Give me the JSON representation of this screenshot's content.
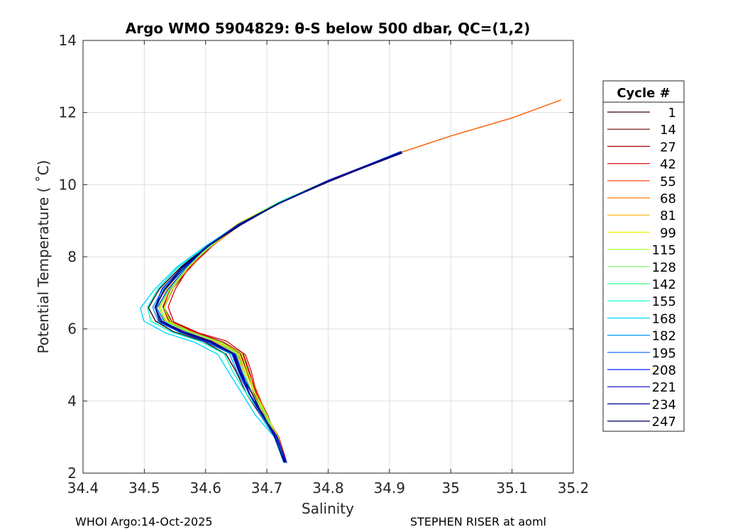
{
  "chart_data": {
    "type": "line",
    "title": "Argo WMO 5904829: θ-S below 500 dbar,  QC=(1,2)",
    "xlabel": "Salinity",
    "ylabel": "Potential Temperature ( ˚C)",
    "xlim": [
      34.4,
      35.2
    ],
    "ylim": [
      2,
      14
    ],
    "xticks": [
      "34.4",
      "34.5",
      "34.6",
      "34.7",
      "34.8",
      "34.9",
      "35",
      "35.1",
      "35.2"
    ],
    "yticks": [
      "2",
      "4",
      "6",
      "8",
      "10",
      "12",
      "14"
    ],
    "grid": true,
    "legend": {
      "title": "Cycle #",
      "placement": "right"
    },
    "series": [
      {
        "name": "1",
        "color": "#3a0000",
        "variant": -0.015
      },
      {
        "name": "14",
        "color": "#6d0000",
        "variant": 0.012
      },
      {
        "name": "27",
        "color": "#a80000",
        "variant": 0.018
      },
      {
        "name": "42",
        "color": "#d81414",
        "variant": 0.022
      },
      {
        "name": "55",
        "color": "#ff3c00",
        "variant": 0.016
      },
      {
        "name": "68",
        "color": "#ff7800",
        "variant": 0.008
      },
      {
        "name": "81",
        "color": "#ffb400",
        "variant": 0.004
      },
      {
        "name": "99",
        "color": "#f0f000",
        "variant": 0.01
      },
      {
        "name": "115",
        "color": "#a8ff2a",
        "variant": 0.014
      },
      {
        "name": "128",
        "color": "#6cff5a",
        "variant": 0.006
      },
      {
        "name": "142",
        "color": "#30ff8c",
        "variant": -0.004
      },
      {
        "name": "155",
        "color": "#00ffc8",
        "variant": -0.02
      },
      {
        "name": "168",
        "color": "#00d6ff",
        "variant": -0.032
      },
      {
        "name": "182",
        "color": "#009cff",
        "variant": -0.01
      },
      {
        "name": "195",
        "color": "#0060ff",
        "variant": 0.002
      },
      {
        "name": "208",
        "color": "#0024ff",
        "variant": -0.006
      },
      {
        "name": "221",
        "color": "#0000d4",
        "variant": -0.002
      },
      {
        "name": "234",
        "color": "#00009a",
        "variant": 0.0
      },
      {
        "name": "247",
        "color": "#000064",
        "variant": -0.004
      }
    ],
    "base_profile": [
      {
        "s": 34.73,
        "t": 2.3
      },
      {
        "s": 34.715,
        "t": 3.0
      },
      {
        "s": 34.695,
        "t": 3.6
      },
      {
        "s": 34.675,
        "t": 4.2
      },
      {
        "s": 34.66,
        "t": 4.8
      },
      {
        "s": 34.645,
        "t": 5.3
      },
      {
        "s": 34.61,
        "t": 5.65
      },
      {
        "s": 34.565,
        "t": 5.9
      },
      {
        "s": 34.53,
        "t": 6.2
      },
      {
        "s": 34.52,
        "t": 6.6
      },
      {
        "s": 34.535,
        "t": 7.1
      },
      {
        "s": 34.565,
        "t": 7.7
      },
      {
        "s": 34.605,
        "t": 8.3
      },
      {
        "s": 34.655,
        "t": 8.9
      },
      {
        "s": 34.72,
        "t": 9.5
      },
      {
        "s": 34.8,
        "t": 10.1
      },
      {
        "s": 34.92,
        "t": 10.9
      }
    ],
    "warm_tail": [
      {
        "s": 34.92,
        "t": 10.9
      },
      {
        "s": 35.0,
        "t": 11.35
      },
      {
        "s": 35.1,
        "t": 11.85
      },
      {
        "s": 35.18,
        "t": 12.35
      }
    ]
  },
  "footer": {
    "left": "WHOI Argo:14-Oct-2025",
    "right": "STEPHEN RISER at aoml"
  }
}
